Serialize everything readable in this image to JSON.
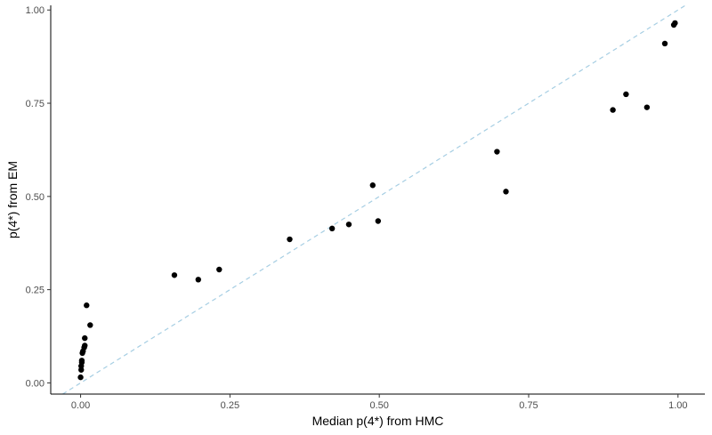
{
  "chart_data": {
    "type": "scatter",
    "title": "",
    "xlabel": "Median p(4*) from HMC",
    "ylabel": "p(4*) from EM",
    "xlim": [
      -0.05,
      1.045
    ],
    "ylim": [
      -0.03,
      1.0125
    ],
    "x_ticks": [
      0.0,
      0.25,
      0.5,
      0.75,
      1.0
    ],
    "x_tick_labels": [
      "0.00",
      "0.25",
      "0.50",
      "0.75",
      "1.00"
    ],
    "y_ticks": [
      0.0,
      0.25,
      0.5,
      0.75,
      1.0
    ],
    "y_tick_labels": [
      "0.00",
      "0.25",
      "0.50",
      "0.75",
      "1.00"
    ],
    "grid": false,
    "legend": "none",
    "reference_line": {
      "slope": 1,
      "intercept": 0,
      "style": "dashed",
      "color": "#a6cee3"
    },
    "point_color": "#000000",
    "points": [
      {
        "x": 0.0,
        "y": 0.015
      },
      {
        "x": 0.001,
        "y": 0.035
      },
      {
        "x": 0.001,
        "y": 0.045
      },
      {
        "x": 0.002,
        "y": 0.055
      },
      {
        "x": 0.002,
        "y": 0.06
      },
      {
        "x": 0.003,
        "y": 0.08
      },
      {
        "x": 0.004,
        "y": 0.085
      },
      {
        "x": 0.006,
        "y": 0.095
      },
      {
        "x": 0.007,
        "y": 0.1
      },
      {
        "x": 0.007,
        "y": 0.12
      },
      {
        "x": 0.01,
        "y": 0.208
      },
      {
        "x": 0.016,
        "y": 0.155
      },
      {
        "x": 0.157,
        "y": 0.289
      },
      {
        "x": 0.197,
        "y": 0.277
      },
      {
        "x": 0.232,
        "y": 0.304
      },
      {
        "x": 0.35,
        "y": 0.385
      },
      {
        "x": 0.421,
        "y": 0.414
      },
      {
        "x": 0.449,
        "y": 0.425
      },
      {
        "x": 0.489,
        "y": 0.53
      },
      {
        "x": 0.498,
        "y": 0.434
      },
      {
        "x": 0.697,
        "y": 0.62
      },
      {
        "x": 0.712,
        "y": 0.513
      },
      {
        "x": 0.891,
        "y": 0.732
      },
      {
        "x": 0.913,
        "y": 0.774
      },
      {
        "x": 0.948,
        "y": 0.739
      },
      {
        "x": 0.978,
        "y": 0.91
      },
      {
        "x": 0.993,
        "y": 0.96
      },
      {
        "x": 0.995,
        "y": 0.965
      }
    ]
  }
}
